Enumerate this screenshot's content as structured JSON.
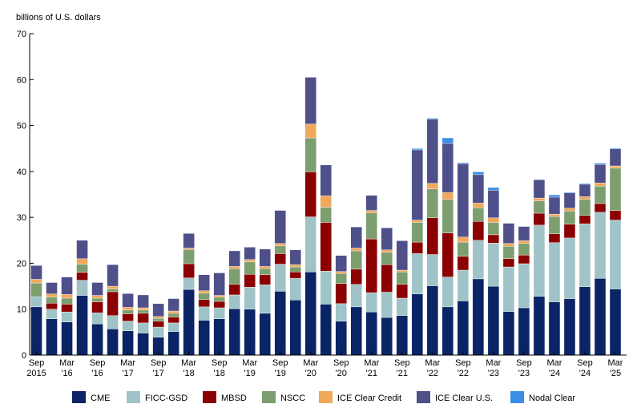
{
  "chart_data": {
    "type": "bar",
    "stacked": true,
    "ylabel": "billions of U.S. dollars",
    "ylim": [
      0,
      70
    ],
    "yticks": [
      0,
      10,
      20,
      30,
      40,
      50,
      60,
      70
    ],
    "grid": false,
    "legend_position": "bottom",
    "tick_labels": [
      {
        "index": 0,
        "lines": [
          "Sep",
          "2015"
        ]
      },
      {
        "index": 2,
        "lines": [
          "Mar",
          "'16"
        ]
      },
      {
        "index": 4,
        "lines": [
          "Sep",
          "'16"
        ]
      },
      {
        "index": 6,
        "lines": [
          "Mar",
          "'17"
        ]
      },
      {
        "index": 8,
        "lines": [
          "Sep",
          "'17"
        ]
      },
      {
        "index": 10,
        "lines": [
          "Mar",
          "'18"
        ]
      },
      {
        "index": 12,
        "lines": [
          "Sep",
          "'18"
        ]
      },
      {
        "index": 14,
        "lines": [
          "Mar",
          "'19"
        ]
      },
      {
        "index": 16,
        "lines": [
          "Sep",
          "'19"
        ]
      },
      {
        "index": 18,
        "lines": [
          "Mar",
          "'20"
        ]
      },
      {
        "index": 20,
        "lines": [
          "Sep",
          "'20"
        ]
      },
      {
        "index": 22,
        "lines": [
          "Mar",
          "'21"
        ]
      },
      {
        "index": 24,
        "lines": [
          "Sep",
          "'21"
        ]
      },
      {
        "index": 26,
        "lines": [
          "Mar",
          "'22"
        ]
      },
      {
        "index": 28,
        "lines": [
          "Sep",
          "'22"
        ]
      },
      {
        "index": 30,
        "lines": [
          "Mar",
          "'23"
        ]
      },
      {
        "index": 32,
        "lines": [
          "Sep",
          "'23"
        ]
      },
      {
        "index": 34,
        "lines": [
          "Mar",
          "'24"
        ]
      },
      {
        "index": 36,
        "lines": [
          "Sep",
          "'24"
        ]
      },
      {
        "index": 38,
        "lines": [
          "Mar",
          "'25"
        ]
      }
    ],
    "categories": [
      "2015 Q3",
      "2015 Q4",
      "2016 Q1",
      "2016 Q2",
      "2016 Q3",
      "2016 Q4",
      "2017 Q1",
      "2017 Q2",
      "2017 Q3",
      "2017 Q4",
      "2018 Q1",
      "2018 Q2",
      "2018 Q3",
      "2018 Q4",
      "2019 Q1",
      "2019 Q2",
      "2019 Q3",
      "2019 Q4",
      "2020 Q1",
      "2020 Q2",
      "2020 Q3",
      "2020 Q4",
      "2021 Q1",
      "2021 Q2",
      "2021 Q3",
      "2021 Q4",
      "2022 Q1",
      "2022 Q2",
      "2022 Q3",
      "2022 Q4",
      "2023 Q1",
      "2023 Q2",
      "2023 Q3",
      "2023 Q4",
      "2024 Q1",
      "2024 Q2",
      "2024 Q3",
      "2024 Q4",
      "2025 Q1"
    ],
    "series": [
      {
        "name": "CME",
        "color": "#0b2466",
        "values": [
          10.5,
          7.9,
          7.2,
          13.0,
          6.8,
          5.7,
          5.3,
          4.8,
          3.9,
          5.1,
          14.3,
          7.6,
          7.9,
          10.1,
          10.0,
          9.1,
          13.9,
          12.0,
          18.1,
          11.1,
          7.4,
          10.5,
          9.4,
          8.2,
          8.6,
          13.3,
          15.1,
          10.5,
          11.8,
          16.6,
          15.0,
          9.5,
          10.3,
          12.8,
          11.6,
          12.3,
          14.9,
          16.7,
          14.4
        ]
      },
      {
        "name": "FICC-GSD",
        "color": "#9fc3c7",
        "values": [
          2.2,
          2.1,
          2.2,
          3.3,
          2.4,
          2.9,
          2.1,
          2.2,
          2.2,
          1.9,
          2.5,
          2.9,
          2.4,
          3.0,
          4.8,
          6.2,
          5.9,
          4.7,
          12.0,
          7.2,
          3.8,
          4.9,
          4.2,
          5.5,
          3.8,
          8.8,
          6.8,
          6.5,
          6.7,
          8.4,
          9.4,
          9.7,
          9.6,
          15.5,
          12.9,
          13.2,
          13.7,
          14.4,
          15.0
        ]
      },
      {
        "name": "MBSD",
        "color": "#8b0000",
        "values": [
          0.0,
          1.3,
          1.7,
          1.7,
          2.4,
          5.2,
          1.6,
          2.1,
          1.3,
          1.3,
          3.1,
          1.6,
          1.4,
          2.3,
          2.8,
          2.2,
          2.3,
          1.4,
          9.8,
          10.6,
          4.4,
          3.3,
          11.7,
          6.0,
          3.0,
          2.5,
          8.0,
          9.6,
          3.0,
          4.1,
          1.8,
          1.8,
          1.9,
          2.6,
          1.9,
          3.0,
          1.8,
          1.9,
          2.1
        ]
      },
      {
        "name": "NSCC",
        "color": "#7d9e6f",
        "values": [
          3.0,
          1.3,
          1.3,
          1.8,
          0.8,
          0.6,
          0.8,
          0.7,
          0.6,
          0.8,
          3.1,
          1.4,
          0.9,
          3.4,
          2.7,
          1.3,
          1.7,
          1.1,
          7.4,
          3.3,
          2.2,
          4.0,
          5.7,
          2.7,
          2.7,
          4.3,
          6.3,
          7.3,
          3.1,
          3.0,
          2.7,
          2.7,
          2.5,
          2.7,
          3.8,
          2.9,
          3.5,
          3.8,
          9.2
        ]
      },
      {
        "name": "ICE Clear Credit",
        "color": "#f0a85a",
        "values": [
          0.8,
          0.7,
          0.8,
          1.2,
          0.6,
          0.6,
          0.6,
          0.5,
          0.4,
          0.5,
          0.3,
          0.5,
          0.4,
          0.5,
          0.5,
          0.5,
          0.5,
          0.5,
          3.0,
          2.5,
          0.4,
          0.6,
          0.5,
          0.5,
          0.4,
          0.5,
          1.2,
          1.5,
          1.1,
          1.0,
          1.0,
          0.6,
          0.6,
          0.6,
          0.5,
          0.6,
          0.6,
          0.7,
          0.5
        ]
      },
      {
        "name": "ICE Clear U.S.",
        "color": "#4f4f8a",
        "values": [
          3.0,
          2.5,
          3.8,
          4.0,
          2.8,
          4.7,
          3.0,
          2.8,
          2.8,
          2.7,
          3.2,
          3.5,
          4.9,
          3.4,
          2.7,
          3.8,
          7.2,
          3.2,
          10.2,
          6.7,
          3.5,
          4.6,
          3.3,
          4.8,
          6.4,
          15.3,
          14.0,
          10.7,
          16.0,
          6.2,
          6.0,
          4.4,
          3.1,
          4.0,
          3.7,
          3.3,
          2.7,
          4.0,
          3.7
        ]
      },
      {
        "name": "Nodal Clear",
        "color": "#3b8ee6",
        "values": [
          0,
          0,
          0,
          0,
          0,
          0,
          0,
          0,
          0,
          0,
          0,
          0,
          0,
          0,
          0,
          0,
          0,
          0,
          0,
          0,
          0,
          0,
          0,
          0,
          0,
          0.3,
          0.2,
          1.2,
          0.2,
          0.6,
          0.6,
          0.1,
          0.1,
          0.1,
          0.5,
          0.2,
          0.2,
          0.3,
          0.2
        ]
      }
    ]
  }
}
